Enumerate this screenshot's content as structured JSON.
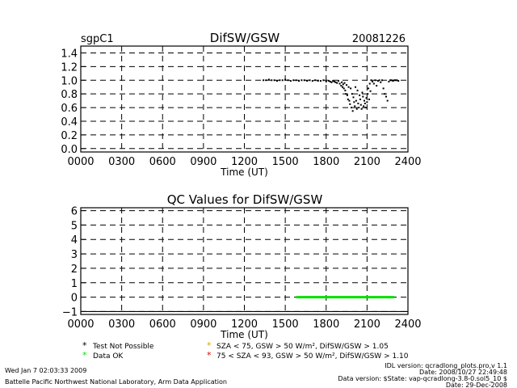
{
  "header": {
    "site": "sgpC1",
    "title": "DifSW/GSW",
    "date": "20081226"
  },
  "chart_data": [
    {
      "type": "scatter",
      "title": "DifSW/GSW",
      "xlabel": "Time (UT)",
      "ylabel": "",
      "xlim": [
        0,
        2400
      ],
      "ylim": [
        -0.05,
        1.5
      ],
      "x_ticks": [
        "0000",
        "0300",
        "0600",
        "0900",
        "1200",
        "1500",
        "1800",
        "2100",
        "2400"
      ],
      "y_ticks": [
        "0.0",
        "0.2",
        "0.4",
        "0.6",
        "0.8",
        "1.0",
        "1.2",
        "1.4"
      ],
      "grid": true,
      "series": [
        {
          "color": "#000000",
          "x": [
            1340,
            1360,
            1380,
            1400,
            1420,
            1440,
            1460,
            1480,
            1500,
            1520,
            1540,
            1560,
            1580,
            1600,
            1620,
            1640,
            1660,
            1680,
            1700,
            1720,
            1740,
            1760,
            1780,
            1800,
            1820,
            1830,
            1840,
            1850,
            1860,
            1870,
            1880,
            1890,
            1900,
            1910,
            1915,
            1920,
            1925,
            1930,
            1935,
            1940,
            1945,
            1950,
            1955,
            1960,
            1965,
            1970,
            1975,
            1980,
            1985,
            1990,
            1995,
            2000,
            2005,
            2010,
            2015,
            2020,
            2025,
            2030,
            2035,
            2040,
            2045,
            2050,
            2055,
            2060,
            2065,
            2070,
            2075,
            2080,
            2085,
            2090,
            2095,
            2100,
            2105,
            2110,
            2115,
            2120,
            2125,
            2130,
            2140,
            2150,
            2160,
            2170,
            2180,
            2190,
            2200,
            2210,
            2220,
            2230,
            2240,
            2250,
            2260,
            2270,
            2280,
            2290,
            2300,
            2310,
            2320,
            2330
          ],
          "y": [
            1.0,
            1.0,
            1.01,
            1.0,
            1.0,
            0.99,
            1.0,
            1.0,
            1.01,
            1.0,
            0.99,
            1.0,
            1.0,
            0.99,
            1.0,
            1.0,
            0.99,
            1.0,
            0.99,
            1.0,
            0.99,
            0.99,
            1.0,
            0.98,
            0.99,
            0.98,
            0.97,
            0.99,
            0.98,
            0.97,
            0.96,
            0.99,
            0.95,
            0.92,
            0.97,
            0.9,
            0.94,
            0.88,
            0.96,
            0.85,
            0.8,
            0.93,
            0.78,
            0.72,
            0.9,
            0.7,
            0.65,
            0.88,
            0.6,
            0.8,
            0.55,
            0.75,
            0.68,
            0.62,
            0.9,
            0.7,
            0.58,
            0.85,
            0.66,
            0.6,
            0.78,
            0.72,
            0.64,
            0.58,
            0.82,
            0.76,
            0.62,
            0.7,
            0.66,
            0.6,
            0.74,
            0.68,
            0.8,
            0.88,
            0.72,
            0.95,
            0.84,
            1.0,
            0.98,
            0.95,
            1.0,
            0.92,
            0.99,
            1.0,
            0.97,
            1.0,
            0.88,
            0.8,
            0.76,
            0.7,
            0.98,
            1.0,
            1.0,
            0.99,
            1.0,
            1.0,
            1.0,
            0.99
          ]
        }
      ]
    },
    {
      "type": "line",
      "title": "QC Values for DifSW/GSW",
      "xlabel": "Time (UT)",
      "ylabel": "",
      "xlim": [
        0,
        2400
      ],
      "ylim": [
        -1.2,
        6.2
      ],
      "x_ticks": [
        "0000",
        "0300",
        "0600",
        "0900",
        "1200",
        "1500",
        "1800",
        "2100",
        "2400"
      ],
      "y_ticks": [
        "−1",
        "0",
        "1",
        "2",
        "3",
        "4",
        "5",
        "6"
      ],
      "grid": true,
      "series": [
        {
          "color": "#00e000",
          "x": [
            1580,
            2300
          ],
          "y": [
            0,
            0
          ]
        }
      ]
    }
  ],
  "legend": {
    "items": [
      {
        "symbol": "*",
        "color": "#000000",
        "label": "Test Not Possible"
      },
      {
        "symbol": "*",
        "color": "#00e000",
        "label": "Data OK"
      },
      {
        "symbol": "*",
        "color": "#e0a000",
        "label": "SZA < 75, GSW > 50 W/m², DifSW/GSW > 1.05"
      },
      {
        "symbol": "*",
        "color": "#e00000",
        "label": "75 < SZA < 93, GSW > 50 W/m², DifSW/GSW > 1.10"
      }
    ]
  },
  "footer": {
    "run_date": "Wed Jan  7 02:03:33 2009",
    "lab": "Battelle Pacific Northwest National Laboratory, Arm Data Application",
    "idl_version": "IDL version: qcradlong_plots.pro,v 1.1",
    "idl_date": "Date: 2008/10/27 22:49:48",
    "data_version": "Data version: $State: vap-qcradlong-3.8-0.sol5_10 $",
    "data_date": "Date: 29-Dec-2008"
  }
}
